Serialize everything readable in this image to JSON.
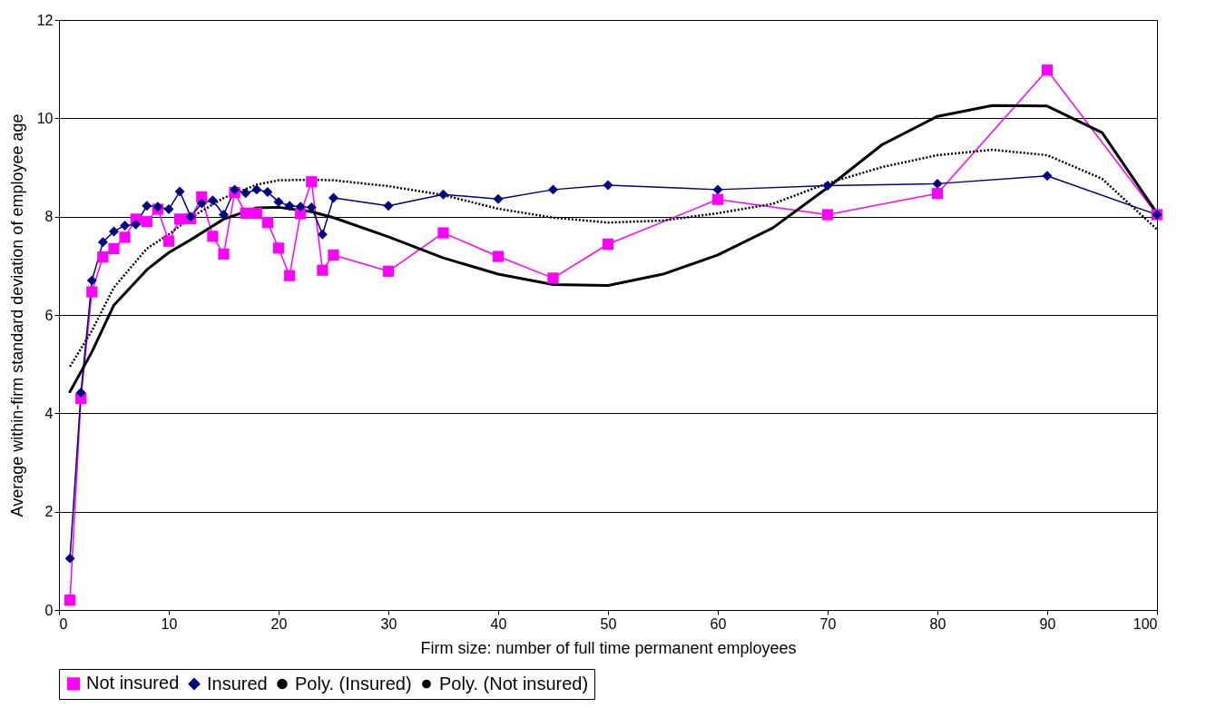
{
  "chart_data": {
    "type": "line",
    "xlabel": "Firm size: number of full time permanent employees",
    "ylabel": "Average within-firm standard deviation of employee age",
    "xlim": [
      0,
      100
    ],
    "xticks": [
      0,
      10,
      20,
      30,
      40,
      50,
      60,
      70,
      80,
      90,
      100
    ],
    "ylim": [
      0,
      12
    ],
    "yticks": [
      0,
      2,
      4,
      6,
      8,
      10,
      12
    ],
    "grid": "y",
    "legend": "bottom",
    "series": [
      {
        "name": "Not insured",
        "color": "#ff00ff",
        "marker": "square",
        "line_style": "solid",
        "x": [
          1,
          2,
          3,
          4,
          5,
          6,
          7,
          8,
          9,
          10,
          11,
          12,
          13,
          14,
          15,
          16,
          17,
          18,
          19,
          20,
          21,
          22,
          23,
          24,
          25,
          30,
          35,
          40,
          45,
          50,
          60,
          70,
          80,
          90,
          100
        ],
        "values": [
          0.2,
          4.3,
          6.47,
          7.18,
          7.35,
          7.58,
          7.95,
          7.9,
          8.15,
          7.5,
          7.95,
          7.96,
          8.4,
          7.6,
          7.24,
          8.49,
          8.07,
          8.07,
          7.88,
          7.36,
          6.8,
          8.06,
          8.71,
          6.91,
          7.22,
          6.89,
          7.67,
          7.19,
          6.75,
          7.44,
          8.35,
          8.04,
          8.47,
          10.98,
          8.04
        ]
      },
      {
        "name": "Insured",
        "color": "#000080",
        "marker": "diamond",
        "line_style": "solid",
        "x": [
          1,
          2,
          3,
          4,
          5,
          6,
          7,
          8,
          9,
          10,
          11,
          12,
          13,
          14,
          15,
          16,
          17,
          18,
          19,
          20,
          21,
          22,
          23,
          24,
          25,
          30,
          35,
          40,
          45,
          50,
          60,
          70,
          80,
          90,
          100
        ],
        "values": [
          1.05,
          4.42,
          6.7,
          7.48,
          7.7,
          7.82,
          7.84,
          8.22,
          8.2,
          8.15,
          8.51,
          8.0,
          8.27,
          8.33,
          8.04,
          8.55,
          8.48,
          8.55,
          8.5,
          8.3,
          8.22,
          8.2,
          8.19,
          7.64,
          8.38,
          8.22,
          8.45,
          8.36,
          8.55,
          8.64,
          8.55,
          8.63,
          8.67,
          8.83,
          8.04
        ]
      },
      {
        "name": "Poly. (Insured)",
        "color": "#000000",
        "marker": "none",
        "line_style": "dotted",
        "x": [
          1,
          3,
          5,
          8,
          10,
          12,
          15,
          18,
          20,
          23,
          25,
          30,
          35,
          40,
          45,
          50,
          55,
          60,
          65,
          70,
          75,
          80,
          85,
          90,
          95,
          100
        ],
        "values": [
          4.95,
          5.68,
          6.56,
          7.35,
          7.64,
          7.98,
          8.38,
          8.65,
          8.74,
          8.75,
          8.74,
          8.62,
          8.44,
          8.16,
          7.98,
          7.88,
          7.92,
          8.07,
          8.26,
          8.68,
          9.01,
          9.25,
          9.36,
          9.25,
          8.77,
          7.74
        ]
      },
      {
        "name": "Poly. (Not insured)",
        "color": "#000000",
        "marker": "none",
        "line_style": "solid",
        "x": [
          1,
          3,
          5,
          8,
          10,
          12,
          15,
          18,
          20,
          23,
          25,
          30,
          35,
          40,
          45,
          50,
          55,
          60,
          65,
          70,
          75,
          80,
          85,
          90,
          95,
          100
        ],
        "values": [
          4.44,
          5.25,
          6.2,
          6.92,
          7.27,
          7.53,
          7.95,
          8.18,
          8.19,
          8.1,
          7.98,
          7.59,
          7.16,
          6.83,
          6.62,
          6.6,
          6.83,
          7.22,
          7.77,
          8.59,
          9.47,
          10.04,
          10.26,
          10.25,
          9.71,
          8.07
        ]
      }
    ]
  }
}
